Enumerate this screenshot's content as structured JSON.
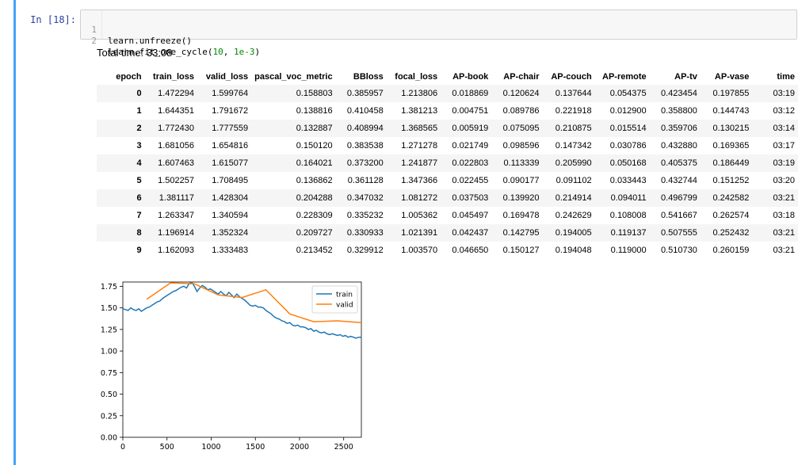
{
  "cell": {
    "prompt": "In [18]:",
    "code": [
      {
        "lineno": "1",
        "text": "learn.unfreeze()"
      },
      {
        "lineno": "2",
        "prefix": "learn.fit_one_cycle(",
        "arg1": "10",
        "sep": ", ",
        "arg2": "1e-3",
        "suffix": ")"
      }
    ]
  },
  "output": {
    "total_time": "Total time: 33:08",
    "table": {
      "headers": [
        "epoch",
        "train_loss",
        "valid_loss",
        "pascal_voc_metric",
        "BBloss",
        "focal_loss",
        "AP-book",
        "AP-chair",
        "AP-couch",
        "AP-remote",
        "AP-tv",
        "AP-vase",
        "time"
      ],
      "rows": [
        [
          "0",
          "1.472294",
          "1.599764",
          "0.158803",
          "0.385957",
          "1.213806",
          "0.018869",
          "0.120624",
          "0.137644",
          "0.054375",
          "0.423454",
          "0.197855",
          "03:19"
        ],
        [
          "1",
          "1.644351",
          "1.791672",
          "0.138816",
          "0.410458",
          "1.381213",
          "0.004751",
          "0.089786",
          "0.221918",
          "0.012900",
          "0.358800",
          "0.144743",
          "03:12"
        ],
        [
          "2",
          "1.772430",
          "1.777559",
          "0.132887",
          "0.408994",
          "1.368565",
          "0.005919",
          "0.075095",
          "0.210875",
          "0.015514",
          "0.359706",
          "0.130215",
          "03:14"
        ],
        [
          "3",
          "1.681056",
          "1.654816",
          "0.150120",
          "0.383538",
          "1.271278",
          "0.021749",
          "0.098596",
          "0.147342",
          "0.030786",
          "0.432880",
          "0.169365",
          "03:17"
        ],
        [
          "4",
          "1.607463",
          "1.615077",
          "0.164021",
          "0.373200",
          "1.241877",
          "0.022803",
          "0.113339",
          "0.205990",
          "0.050168",
          "0.405375",
          "0.186449",
          "03:19"
        ],
        [
          "5",
          "1.502257",
          "1.708495",
          "0.136862",
          "0.361128",
          "1.347366",
          "0.022455",
          "0.090177",
          "0.091102",
          "0.033443",
          "0.432744",
          "0.151252",
          "03:20"
        ],
        [
          "6",
          "1.381117",
          "1.428304",
          "0.204288",
          "0.347032",
          "1.081272",
          "0.037503",
          "0.139920",
          "0.214914",
          "0.094011",
          "0.496799",
          "0.242582",
          "03:21"
        ],
        [
          "7",
          "1.263347",
          "1.340594",
          "0.228309",
          "0.335232",
          "1.005362",
          "0.045497",
          "0.169478",
          "0.242629",
          "0.108008",
          "0.541667",
          "0.262574",
          "03:18"
        ],
        [
          "8",
          "1.196914",
          "1.352324",
          "0.209727",
          "0.330933",
          "1.021391",
          "0.042437",
          "0.142795",
          "0.194005",
          "0.119137",
          "0.507555",
          "0.252432",
          "03:21"
        ],
        [
          "9",
          "1.162093",
          "1.333483",
          "0.213452",
          "0.329912",
          "1.003570",
          "0.046650",
          "0.150127",
          "0.194048",
          "0.119000",
          "0.510730",
          "0.260159",
          "03:21"
        ]
      ]
    }
  },
  "chart_data": {
    "type": "line",
    "xlim": [
      0,
      2700
    ],
    "ylim": [
      0,
      1.8
    ],
    "xticks": [
      "0",
      "500",
      "1000",
      "1500",
      "2000",
      "2500"
    ],
    "yticks": [
      "0.00",
      "0.25",
      "0.50",
      "0.75",
      "1.00",
      "1.25",
      "1.50",
      "1.75"
    ],
    "legend_position": "upper-right",
    "grid": false,
    "series": [
      {
        "name": "train",
        "color": "#1f77b4",
        "x": [
          0,
          30,
          60,
          90,
          120,
          150,
          180,
          210,
          240,
          270,
          300,
          330,
          360,
          390,
          420,
          450,
          480,
          510,
          540,
          570,
          600,
          630,
          660,
          690,
          720,
          750,
          780,
          810,
          840,
          870,
          900,
          930,
          960,
          990,
          1020,
          1050,
          1080,
          1110,
          1140,
          1170,
          1200,
          1230,
          1260,
          1290,
          1320,
          1350,
          1380,
          1410,
          1440,
          1470,
          1500,
          1530,
          1560,
          1590,
          1620,
          1650,
          1680,
          1710,
          1740,
          1770,
          1800,
          1830,
          1860,
          1890,
          1920,
          1950,
          1980,
          2010,
          2040,
          2070,
          2100,
          2130,
          2160,
          2190,
          2220,
          2250,
          2280,
          2310,
          2340,
          2370,
          2400,
          2430,
          2460,
          2490,
          2520,
          2550,
          2580,
          2610,
          2640,
          2670,
          2700
        ],
        "y": [
          1.49,
          1.48,
          1.47,
          1.5,
          1.48,
          1.47,
          1.49,
          1.46,
          1.48,
          1.5,
          1.51,
          1.53,
          1.55,
          1.57,
          1.58,
          1.61,
          1.63,
          1.65,
          1.67,
          1.69,
          1.7,
          1.72,
          1.74,
          1.75,
          1.73,
          1.78,
          1.8,
          1.75,
          1.69,
          1.73,
          1.76,
          1.74,
          1.71,
          1.72,
          1.7,
          1.68,
          1.66,
          1.69,
          1.66,
          1.64,
          1.68,
          1.65,
          1.62,
          1.66,
          1.63,
          1.61,
          1.59,
          1.56,
          1.53,
          1.52,
          1.53,
          1.51,
          1.51,
          1.5,
          1.47,
          1.45,
          1.43,
          1.4,
          1.38,
          1.37,
          1.35,
          1.34,
          1.32,
          1.33,
          1.3,
          1.29,
          1.3,
          1.28,
          1.28,
          1.27,
          1.25,
          1.26,
          1.23,
          1.24,
          1.22,
          1.21,
          1.22,
          1.2,
          1.19,
          1.2,
          1.19,
          1.18,
          1.19,
          1.17,
          1.18,
          1.16,
          1.17,
          1.16,
          1.15,
          1.16,
          1.16
        ]
      },
      {
        "name": "valid",
        "color": "#ff7f0e",
        "x": [
          270,
          540,
          810,
          1080,
          1350,
          1620,
          1890,
          2160,
          2430,
          2700
        ],
        "y": [
          1.6,
          1.79,
          1.78,
          1.65,
          1.62,
          1.71,
          1.43,
          1.34,
          1.35,
          1.33
        ]
      }
    ]
  }
}
